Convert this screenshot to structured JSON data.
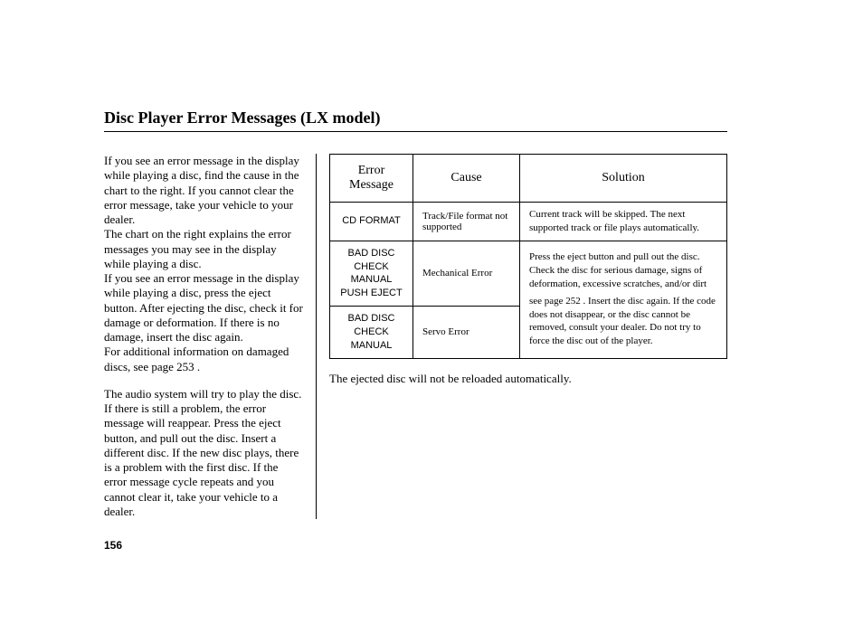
{
  "title": "Disc Player Error Messages (LX model)",
  "left_paragraphs": {
    "p1": "If you see an error message in the display while playing a disc, find the cause in the chart to the right. If you cannot clear the error message, take your vehicle to your dealer.",
    "p2": "The chart on the right explains the error messages you may see in the display while playing a disc.",
    "p3": "If you see an error message in the display while playing a disc, press the eject button. After ejecting the disc, check it for damage or deformation. If there is no damage, insert the disc again.",
    "p4a": "For additional information on damaged discs, see page ",
    "p4_page": "253",
    "p4b": " .",
    "p5": "The audio system will try to play the disc. If there is still a problem, the error message will reappear. Press the eject button, and pull out the disc. Insert a different disc. If the new disc plays, there is a problem with the first disc. If the error message cycle repeats and you cannot clear it, take your vehicle to a dealer."
  },
  "table": {
    "headers": {
      "msg": "Error Message",
      "cause": "Cause",
      "solution": "Solution"
    },
    "rows": [
      {
        "msg": "CD FORMAT",
        "cause": "Track/File format not supported",
        "sol": "Current track will be skipped. The next supported track or file plays automatically."
      },
      {
        "msg": "BAD DISC<br>CHECK MANUAL<br>PUSH EJECT",
        "cause": "Mechanical Error",
        "sol": "Press the eject button and pull out the disc. Check the disc for serious damage, signs of deformation, excessive scratches, and/or dirt see page 252 . Insert the disc again. If the code does not disappear, or the disc cannot be removed, consult your dealer. Do not try to force the disc out of the player."
      },
      {
        "msg": "BAD DISC<br>CHECK MANUAL",
        "cause": "Servo Error",
        "sol": ""
      }
    ],
    "solution_split": {
      "top": "Press the eject button and pull out the disc. Check the disc for serious damage, signs of deformation, excessive scratches, and/or dirt",
      "bottom": "see page 252 . Insert the disc again. If the code does not disappear, or the disc cannot be removed, consult your dealer. Do not try to force the disc out of the player."
    }
  },
  "below_note": "The ejected disc will not be reloaded automatically.",
  "page_number": "156",
  "colors": {
    "text": "#000000",
    "rule": "#000000",
    "bg": "#ffffff"
  }
}
